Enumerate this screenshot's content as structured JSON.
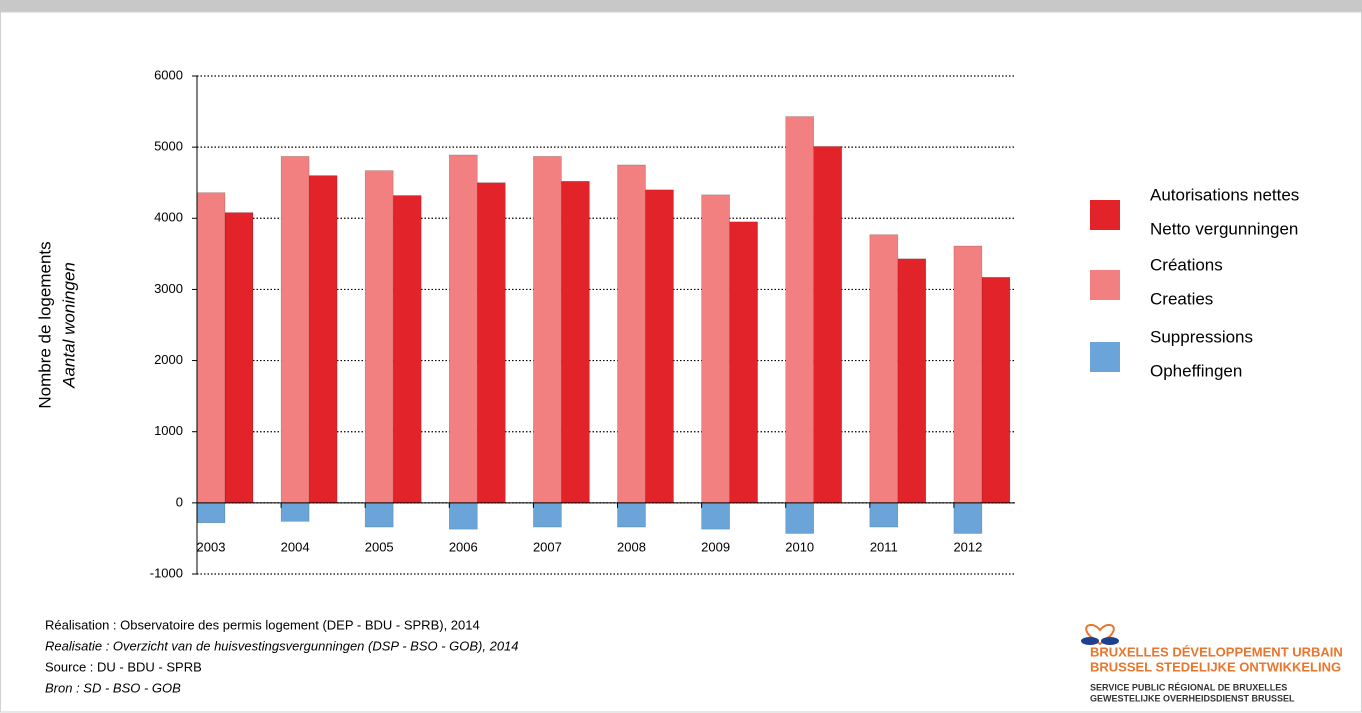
{
  "chart_data": {
    "type": "bar",
    "y_label": [
      "Nombre de logements",
      "Aantal woningen"
    ],
    "categories": [
      "2003",
      "2004",
      "2005",
      "2006",
      "2007",
      "2008",
      "2009",
      "2010",
      "2011",
      "2012"
    ],
    "series": [
      {
        "name": [
          "Autorisations nettes",
          "Netto vergunningen"
        ],
        "color": "#e2242a",
        "values": [
          4080,
          4600,
          4320,
          4500,
          4520,
          4400,
          3950,
          5010,
          3430,
          3170
        ]
      },
      {
        "name": [
          "Créations",
          "Creaties"
        ],
        "color": "#f28080",
        "values": [
          4360,
          4870,
          4670,
          4890,
          4870,
          4750,
          4330,
          5430,
          3770,
          3610
        ]
      },
      {
        "name": [
          "Suppressions",
          "Opheffingen"
        ],
        "color": "#6aa4d8",
        "values": [
          -280,
          -260,
          -340,
          -370,
          -340,
          -340,
          -370,
          -430,
          -340,
          -430
        ]
      }
    ],
    "ylim": [
      -1000,
      6000
    ],
    "yticks": [
      -1000,
      0,
      1000,
      2000,
      3000,
      4000,
      5000,
      6000
    ],
    "grid": true,
    "notes": [
      "Réalisation : Observatoire des permis logement (DEP - BDU - SPRB), 2014",
      "Realisatie : Overzicht van de huisvestingsvergunningen (DSP - BSO - GOB), 2014",
      "Source : DU - BDU - SPRB",
      "Bron : SD - BSO - GOB"
    ],
    "logo": [
      "BRUXELLES DÉVELOPPEMENT URBAIN",
      "BRUSSEL STEDELIJKE ONTWIKKELING",
      "SERVICE PUBLIC RÉGIONAL DE BRUXELLES",
      "GEWESTELIJKE OVERHEIDSDIENST BRUSSEL"
    ]
  }
}
